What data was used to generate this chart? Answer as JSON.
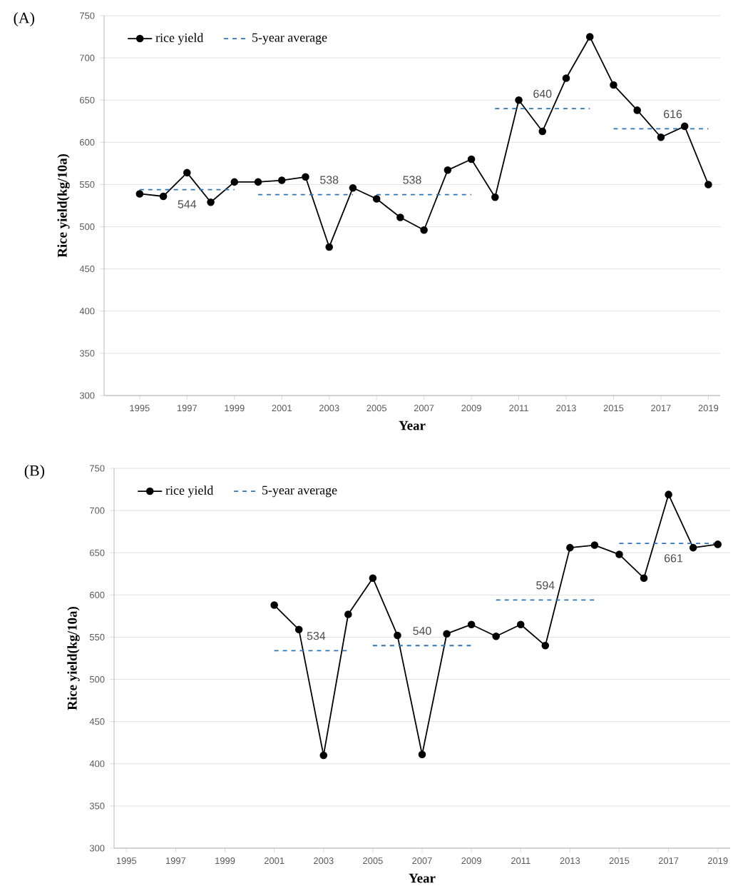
{
  "chart_data": [
    {
      "type": "line",
      "title": "(A)",
      "xlabel": "Year",
      "ylabel": "Rice yield(kg/10a)",
      "grid": "y",
      "legend": "top left",
      "xlim": [
        1993.5,
        2019.5
      ],
      "xticks": [
        1995,
        1997,
        1999,
        2001,
        2003,
        2005,
        2007,
        2009,
        2011,
        2013,
        2015,
        2017,
        2019
      ],
      "ylim": [
        300,
        750
      ],
      "yticks": [
        300,
        350,
        400,
        450,
        500,
        550,
        600,
        650,
        700,
        750
      ],
      "series": [
        {
          "name": "rice yield",
          "color": "#000000",
          "marker": "circle",
          "line_style": "solid",
          "x": [
            1995,
            1996,
            1997,
            1998,
            1999,
            2000,
            2001,
            2002,
            2003,
            2004,
            2005,
            2006,
            2007,
            2008,
            2009,
            2010,
            2011,
            2012,
            2013,
            2014,
            2015,
            2016,
            2017,
            2018,
            2019
          ],
          "values": [
            539,
            536,
            564,
            529,
            553,
            553,
            555,
            559,
            476,
            546,
            533,
            511,
            496,
            567,
            580,
            535,
            650,
            613,
            676,
            725,
            668,
            638,
            606,
            619,
            550
          ]
        },
        {
          "name": "5-year average",
          "color": "#2e75b6",
          "marker": "none",
          "line_style": "dashed",
          "x": [
            1995,
            1999,
            1999.5,
            2000,
            2004,
            2004.5,
            2005,
            2009,
            2009.5,
            2010,
            2014,
            2014.5,
            2015,
            2019
          ],
          "values": [
            544,
            544,
            null,
            538,
            538,
            null,
            538,
            538,
            null,
            640,
            640,
            null,
            616,
            616
          ]
        }
      ],
      "annotations": [
        {
          "text": "544",
          "x": 1997,
          "y": 544
        },
        {
          "text": "538",
          "x": 2003,
          "y": 538
        },
        {
          "text": "538",
          "x": 2006.5,
          "y": 538
        },
        {
          "text": "640",
          "x": 2012,
          "y": 640
        },
        {
          "text": "616",
          "x": 2017.5,
          "y": 616
        }
      ]
    },
    {
      "type": "line",
      "title": "(B)",
      "xlabel": "Year",
      "ylabel": "Rice yield(kg/10a)",
      "grid": "y",
      "legend": "top left",
      "xlim": [
        1994.5,
        2019.5
      ],
      "xticks": [
        1995,
        1997,
        1999,
        2001,
        2003,
        2005,
        2007,
        2009,
        2011,
        2013,
        2015,
        2017,
        2019
      ],
      "ylim": [
        300,
        750
      ],
      "yticks": [
        300,
        350,
        400,
        450,
        500,
        550,
        600,
        650,
        700,
        750
      ],
      "series": [
        {
          "name": "rice yield",
          "color": "#000000",
          "marker": "circle",
          "line_style": "solid",
          "x": [
            2001,
            2002,
            2003,
            2004,
            2005,
            2006,
            2007,
            2008,
            2009,
            2010,
            2011,
            2012,
            2013,
            2014,
            2015,
            2016,
            2017,
            2018,
            2019
          ],
          "values": [
            588,
            559,
            410,
            577,
            620,
            552,
            411,
            554,
            565,
            551,
            565,
            540,
            656,
            659,
            648,
            620,
            719,
            656,
            660
          ]
        },
        {
          "name": "5-year average",
          "color": "#2e75b6",
          "marker": "none",
          "line_style": "dashed",
          "x": [
            2001,
            2004,
            2004.5,
            2005,
            2009,
            2009.5,
            2010,
            2014,
            2014.5,
            2015,
            2019
          ],
          "values": [
            534,
            534,
            null,
            540,
            540,
            null,
            594,
            594,
            null,
            661,
            661
          ]
        }
      ],
      "annotations": [
        {
          "text": "534",
          "x": 2002.7,
          "y": 534
        },
        {
          "text": "540",
          "x": 2007,
          "y": 540
        },
        {
          "text": "594",
          "x": 2012,
          "y": 594
        },
        {
          "text": "661",
          "x": 2017.2,
          "y": 661
        }
      ]
    }
  ]
}
